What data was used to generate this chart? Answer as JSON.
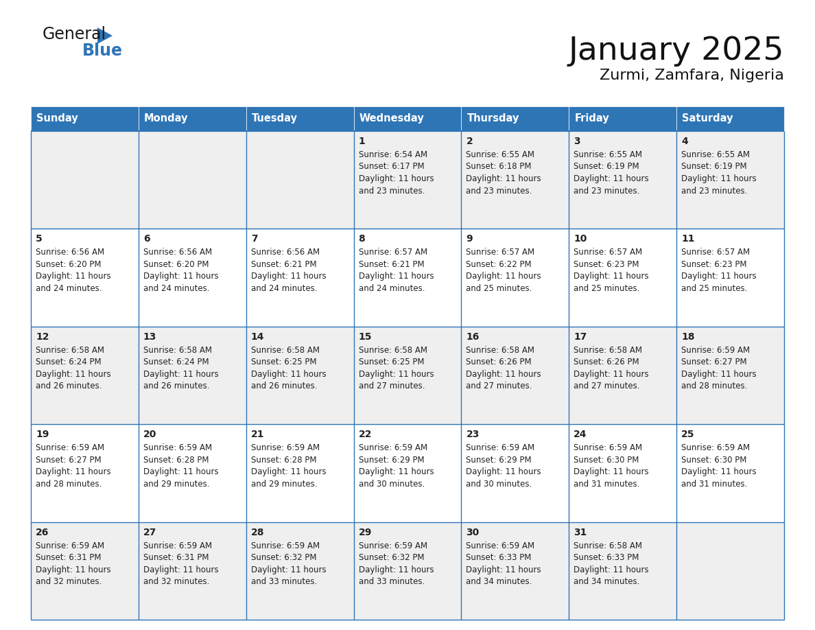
{
  "title": "January 2025",
  "subtitle": "Zurmi, Zamfara, Nigeria",
  "header_bg": "#2E75B6",
  "header_text_color": "#FFFFFF",
  "cell_bg_odd": "#EFEFEF",
  "cell_bg_even": "#FFFFFF",
  "grid_line_color": "#2E75B6",
  "day_headers": [
    "Sunday",
    "Monday",
    "Tuesday",
    "Wednesday",
    "Thursday",
    "Friday",
    "Saturday"
  ],
  "days": [
    {
      "day": 1,
      "col": 3,
      "row": 0,
      "sunrise": "6:54 AM",
      "sunset": "6:17 PM",
      "daylight": "11 hours and 23 minutes."
    },
    {
      "day": 2,
      "col": 4,
      "row": 0,
      "sunrise": "6:55 AM",
      "sunset": "6:18 PM",
      "daylight": "11 hours and 23 minutes."
    },
    {
      "day": 3,
      "col": 5,
      "row": 0,
      "sunrise": "6:55 AM",
      "sunset": "6:19 PM",
      "daylight": "11 hours and 23 minutes."
    },
    {
      "day": 4,
      "col": 6,
      "row": 0,
      "sunrise": "6:55 AM",
      "sunset": "6:19 PM",
      "daylight": "11 hours and 23 minutes."
    },
    {
      "day": 5,
      "col": 0,
      "row": 1,
      "sunrise": "6:56 AM",
      "sunset": "6:20 PM",
      "daylight": "11 hours and 24 minutes."
    },
    {
      "day": 6,
      "col": 1,
      "row": 1,
      "sunrise": "6:56 AM",
      "sunset": "6:20 PM",
      "daylight": "11 hours and 24 minutes."
    },
    {
      "day": 7,
      "col": 2,
      "row": 1,
      "sunrise": "6:56 AM",
      "sunset": "6:21 PM",
      "daylight": "11 hours and 24 minutes."
    },
    {
      "day": 8,
      "col": 3,
      "row": 1,
      "sunrise": "6:57 AM",
      "sunset": "6:21 PM",
      "daylight": "11 hours and 24 minutes."
    },
    {
      "day": 9,
      "col": 4,
      "row": 1,
      "sunrise": "6:57 AM",
      "sunset": "6:22 PM",
      "daylight": "11 hours and 25 minutes."
    },
    {
      "day": 10,
      "col": 5,
      "row": 1,
      "sunrise": "6:57 AM",
      "sunset": "6:23 PM",
      "daylight": "11 hours and 25 minutes."
    },
    {
      "day": 11,
      "col": 6,
      "row": 1,
      "sunrise": "6:57 AM",
      "sunset": "6:23 PM",
      "daylight": "11 hours and 25 minutes."
    },
    {
      "day": 12,
      "col": 0,
      "row": 2,
      "sunrise": "6:58 AM",
      "sunset": "6:24 PM",
      "daylight": "11 hours and 26 minutes."
    },
    {
      "day": 13,
      "col": 1,
      "row": 2,
      "sunrise": "6:58 AM",
      "sunset": "6:24 PM",
      "daylight": "11 hours and 26 minutes."
    },
    {
      "day": 14,
      "col": 2,
      "row": 2,
      "sunrise": "6:58 AM",
      "sunset": "6:25 PM",
      "daylight": "11 hours and 26 minutes."
    },
    {
      "day": 15,
      "col": 3,
      "row": 2,
      "sunrise": "6:58 AM",
      "sunset": "6:25 PM",
      "daylight": "11 hours and 27 minutes."
    },
    {
      "day": 16,
      "col": 4,
      "row": 2,
      "sunrise": "6:58 AM",
      "sunset": "6:26 PM",
      "daylight": "11 hours and 27 minutes."
    },
    {
      "day": 17,
      "col": 5,
      "row": 2,
      "sunrise": "6:58 AM",
      "sunset": "6:26 PM",
      "daylight": "11 hours and 27 minutes."
    },
    {
      "day": 18,
      "col": 6,
      "row": 2,
      "sunrise": "6:59 AM",
      "sunset": "6:27 PM",
      "daylight": "11 hours and 28 minutes."
    },
    {
      "day": 19,
      "col": 0,
      "row": 3,
      "sunrise": "6:59 AM",
      "sunset": "6:27 PM",
      "daylight": "11 hours and 28 minutes."
    },
    {
      "day": 20,
      "col": 1,
      "row": 3,
      "sunrise": "6:59 AM",
      "sunset": "6:28 PM",
      "daylight": "11 hours and 29 minutes."
    },
    {
      "day": 21,
      "col": 2,
      "row": 3,
      "sunrise": "6:59 AM",
      "sunset": "6:28 PM",
      "daylight": "11 hours and 29 minutes."
    },
    {
      "day": 22,
      "col": 3,
      "row": 3,
      "sunrise": "6:59 AM",
      "sunset": "6:29 PM",
      "daylight": "11 hours and 30 minutes."
    },
    {
      "day": 23,
      "col": 4,
      "row": 3,
      "sunrise": "6:59 AM",
      "sunset": "6:29 PM",
      "daylight": "11 hours and 30 minutes."
    },
    {
      "day": 24,
      "col": 5,
      "row": 3,
      "sunrise": "6:59 AM",
      "sunset": "6:30 PM",
      "daylight": "11 hours and 31 minutes."
    },
    {
      "day": 25,
      "col": 6,
      "row": 3,
      "sunrise": "6:59 AM",
      "sunset": "6:30 PM",
      "daylight": "11 hours and 31 minutes."
    },
    {
      "day": 26,
      "col": 0,
      "row": 4,
      "sunrise": "6:59 AM",
      "sunset": "6:31 PM",
      "daylight": "11 hours and 32 minutes."
    },
    {
      "day": 27,
      "col": 1,
      "row": 4,
      "sunrise": "6:59 AM",
      "sunset": "6:31 PM",
      "daylight": "11 hours and 32 minutes."
    },
    {
      "day": 28,
      "col": 2,
      "row": 4,
      "sunrise": "6:59 AM",
      "sunset": "6:32 PM",
      "daylight": "11 hours and 33 minutes."
    },
    {
      "day": 29,
      "col": 3,
      "row": 4,
      "sunrise": "6:59 AM",
      "sunset": "6:32 PM",
      "daylight": "11 hours and 33 minutes."
    },
    {
      "day": 30,
      "col": 4,
      "row": 4,
      "sunrise": "6:59 AM",
      "sunset": "6:33 PM",
      "daylight": "11 hours and 34 minutes."
    },
    {
      "day": 31,
      "col": 5,
      "row": 4,
      "sunrise": "6:58 AM",
      "sunset": "6:33 PM",
      "daylight": "11 hours and 34 minutes."
    }
  ],
  "num_rows": 5,
  "num_cols": 7
}
